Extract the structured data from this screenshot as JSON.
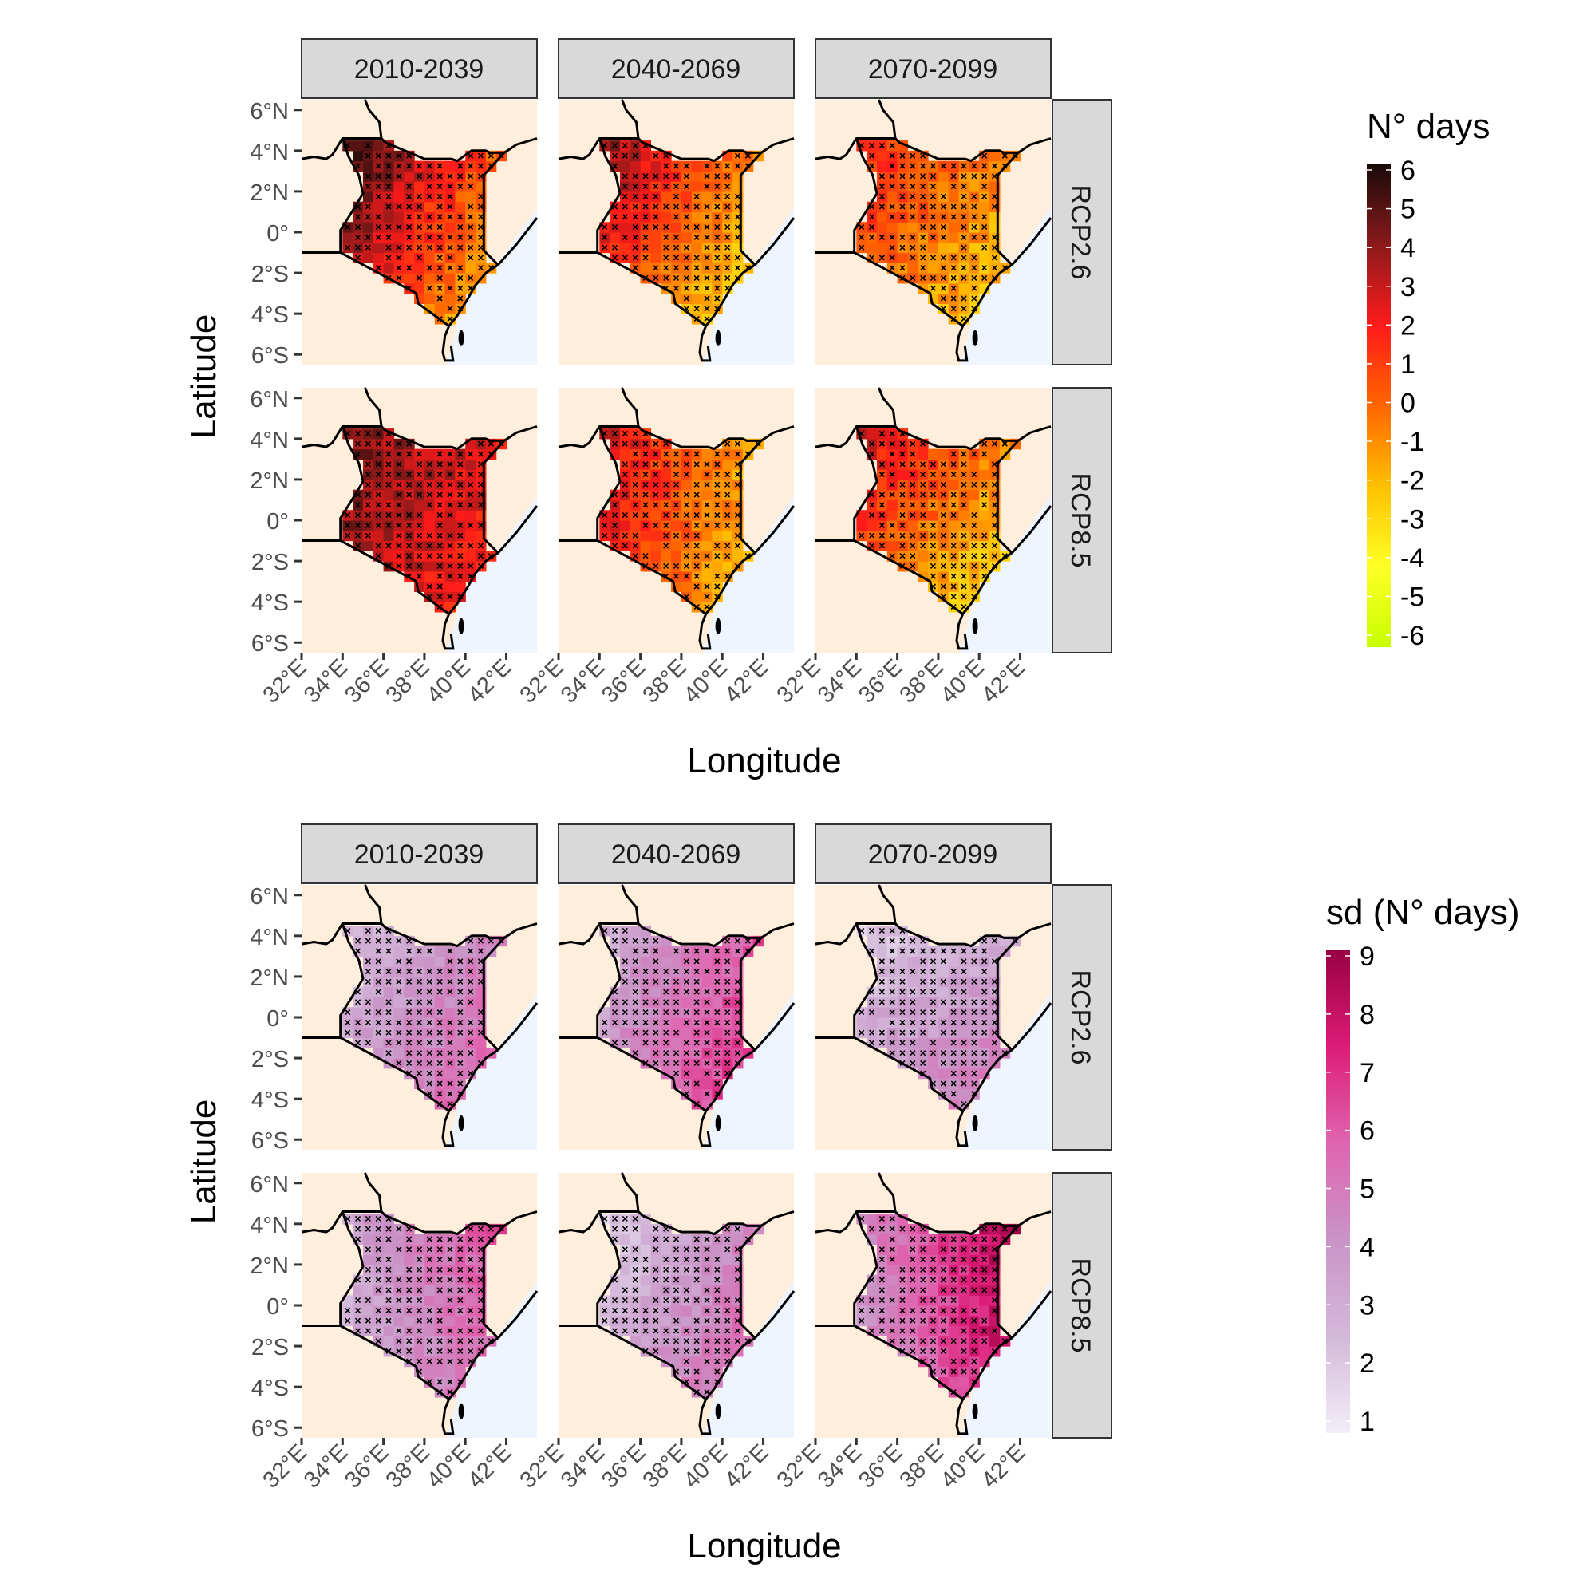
{
  "figure": {
    "top": {
      "col_strips": [
        "2010-2039",
        "2040-2069",
        "2070-2099"
      ],
      "row_strips": [
        "RCP2.6",
        "RCP8.5"
      ],
      "xlabel": "Longitude",
      "ylabel": "Latitude",
      "lat_ticks": [
        "6°N",
        "4°N",
        "2°N",
        "0°",
        "2°S",
        "4°S",
        "6°S"
      ],
      "lon_ticks": [
        "32°E",
        "34°E",
        "36°E",
        "38°E",
        "40°E",
        "42°E"
      ],
      "legend": {
        "title": "N° days",
        "labels": [
          "6",
          "5",
          "4",
          "3",
          "2",
          "1",
          "0",
          "-1",
          "-2",
          "-3",
          "-4",
          "-5",
          "-6"
        ],
        "colors": [
          "#1a0a0a",
          "#8b1a1a",
          "#ff1a1a",
          "#ff6600",
          "#ffc000",
          "#ffff26",
          "#c8ff00"
        ]
      }
    },
    "bottom": {
      "col_strips": [
        "2010-2039",
        "2040-2069",
        "2070-2099"
      ],
      "row_strips": [
        "RCP2.6",
        "RCP8.5"
      ],
      "xlabel": "Longitude",
      "ylabel": "Latitude",
      "lat_ticks": [
        "6°N",
        "4°N",
        "2°N",
        "0°",
        "2°S",
        "4°S",
        "6°S"
      ],
      "lon_ticks": [
        "32°E",
        "34°E",
        "36°E",
        "38°E",
        "40°E",
        "42°E"
      ],
      "legend": {
        "title": "sd (N° days)",
        "labels": [
          "9",
          "8",
          "7",
          "6",
          "5",
          "4",
          "3",
          "2",
          "1"
        ],
        "colors": [
          "#980043",
          "#dd1c77",
          "#df65b0",
          "#c994c7",
          "#d4b9da",
          "#f1eef6"
        ]
      }
    },
    "colors": {
      "panel_land": "#ffeedb",
      "panel_sea": "#eef5ff",
      "strip_fill": "#d9d9d9",
      "border": "#000000"
    }
  },
  "map_data": {
    "lon_range": [
      32,
      43.5
    ],
    "lat_range": [
      -6.5,
      6.5
    ],
    "kenya_outline": [
      [
        34.0,
        4.6
      ],
      [
        34.4,
        4.6
      ],
      [
        35.9,
        4.6
      ],
      [
        36.1,
        4.4
      ],
      [
        38.0,
        3.6
      ],
      [
        39.3,
        3.6
      ],
      [
        39.6,
        3.5
      ],
      [
        40.3,
        4.0
      ],
      [
        41.0,
        4.0
      ],
      [
        41.2,
        3.9
      ],
      [
        41.9,
        3.9
      ],
      [
        40.9,
        2.8
      ],
      [
        40.9,
        -0.9
      ],
      [
        41.6,
        -1.6
      ],
      [
        41.0,
        -2.0
      ],
      [
        40.5,
        -2.6
      ],
      [
        40.1,
        -3.3
      ],
      [
        39.6,
        -4.1
      ],
      [
        39.2,
        -4.6
      ],
      [
        37.7,
        -3.5
      ],
      [
        37.6,
        -3.0
      ],
      [
        33.9,
        -1.0
      ],
      [
        33.9,
        0.1
      ],
      [
        34.4,
        0.9
      ],
      [
        35.0,
        1.9
      ],
      [
        34.8,
        2.8
      ],
      [
        34.3,
        3.7
      ],
      [
        34.0,
        4.6
      ]
    ],
    "n_scatter": [],
    "top_panels_note": "",
    "grid_step_deg": 0.5
  }
}
